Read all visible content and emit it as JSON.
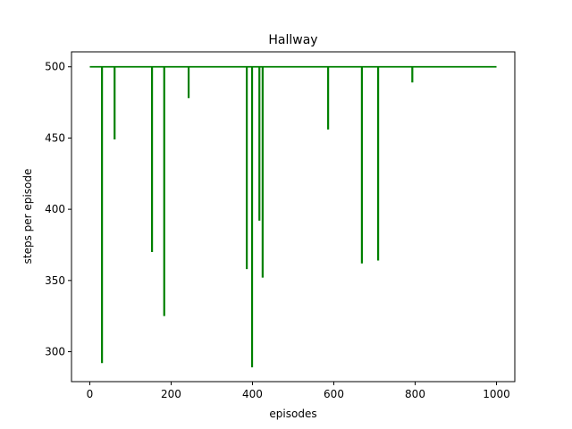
{
  "chart_data": {
    "type": "line",
    "title": "Hallway",
    "xlabel": "episodes",
    "ylabel": "steps per episode",
    "xlim": [
      -45,
      1045
    ],
    "ylim": [
      279,
      510.5
    ],
    "xticks": [
      0,
      200,
      400,
      600,
      800,
      1000
    ],
    "yticks": [
      300,
      350,
      400,
      450,
      500
    ],
    "grid": false,
    "series": [
      {
        "color": "#008000",
        "baseline": 500,
        "x_range": [
          0,
          1000
        ],
        "dips": [
          {
            "x": 30,
            "y": 292
          },
          {
            "x": 61,
            "y": 449
          },
          {
            "x": 153,
            "y": 370
          },
          {
            "x": 183,
            "y": 325
          },
          {
            "x": 243,
            "y": 478
          },
          {
            "x": 386,
            "y": 358
          },
          {
            "x": 399,
            "y": 289
          },
          {
            "x": 417,
            "y": 392
          },
          {
            "x": 425,
            "y": 352
          },
          {
            "x": 586,
            "y": 456
          },
          {
            "x": 669,
            "y": 362
          },
          {
            "x": 709,
            "y": 364
          },
          {
            "x": 793,
            "y": 489
          }
        ]
      }
    ]
  }
}
